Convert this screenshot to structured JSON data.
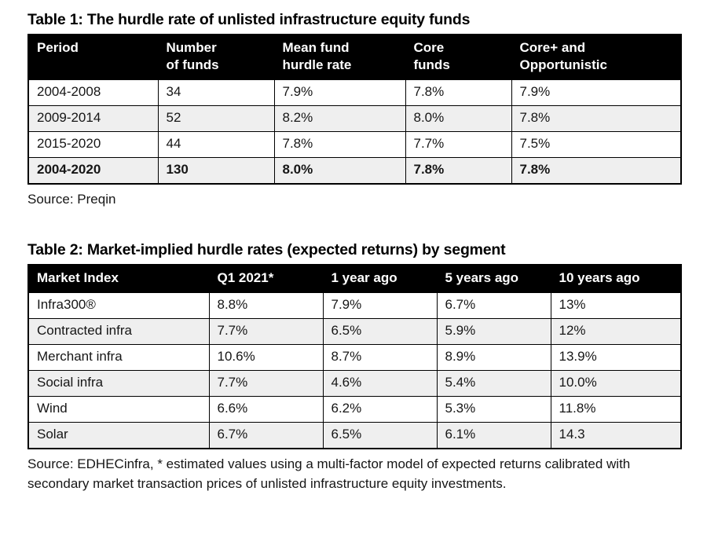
{
  "colors": {
    "header_bg": "#000000",
    "header_text": "#ffffff",
    "row_alt_bg": "#efefef",
    "border": "#000000",
    "page_bg": "#ffffff"
  },
  "table1": {
    "title": "Table 1: The hurdle rate of unlisted infrastructure equity funds",
    "headers": [
      "Period",
      "Number\nof funds",
      "Mean fund\nhurdle rate",
      "Core\nfunds",
      "Core+ and\nOpportunistic"
    ],
    "rows": [
      [
        "2004-2008",
        "34",
        "7.9%",
        "7.8%",
        "7.9%"
      ],
      [
        "2009-2014",
        "52",
        "8.2%",
        "8.0%",
        "7.8%"
      ],
      [
        "2015-2020",
        "44",
        "7.8%",
        "7.7%",
        "7.5%"
      ],
      [
        "2004-2020",
        "130",
        "8.0%",
        "7.8%",
        "7.8%"
      ]
    ],
    "source": "Source: Preqin"
  },
  "table2": {
    "title": "Table 2: Market-implied hurdle rates (expected returns) by segment",
    "headers": [
      "Market Index",
      "Q1 2021*",
      "1 year ago",
      "5 years ago",
      "10 years ago"
    ],
    "rows": [
      [
        "Infra300®",
        "8.8%",
        "7.9%",
        "6.7%",
        "13%"
      ],
      [
        "Contracted infra",
        "7.7%",
        "6.5%",
        "5.9%",
        "12%"
      ],
      [
        "Merchant infra",
        "10.6%",
        "8.7%",
        "8.9%",
        "13.9%"
      ],
      [
        "Social infra",
        "7.7%",
        "4.6%",
        "5.4%",
        "10.0%"
      ],
      [
        "Wind",
        "6.6%",
        "6.2%",
        "5.3%",
        "11.8%"
      ],
      [
        "Solar",
        "6.7%",
        "6.5%",
        "6.1%",
        "14.3"
      ]
    ],
    "source": "Source: EDHECinfra, * estimated values using a multi-factor model of expected returns calibrated with secondary market transaction prices of unlisted infrastructure equity investments."
  }
}
